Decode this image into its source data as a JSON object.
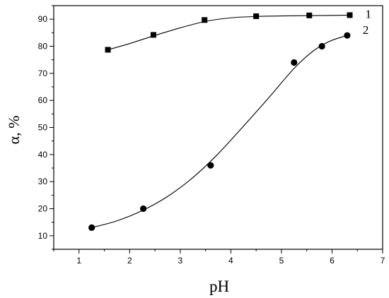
{
  "chart_data": {
    "type": "scatter",
    "xlabel": "pH",
    "ylabel": "α, %",
    "xlim": [
      0.5,
      7
    ],
    "ylim": [
      5,
      95
    ],
    "x_ticks": [
      1,
      2,
      3,
      4,
      5,
      6,
      7
    ],
    "y_ticks": [
      10,
      20,
      30,
      40,
      50,
      60,
      70,
      80,
      90
    ],
    "grid": false,
    "legend": "none",
    "series": [
      {
        "name": "1",
        "marker": "square",
        "color": "#000000",
        "x": [
          1.57,
          2.47,
          3.48,
          4.5,
          5.55,
          6.35
        ],
        "y": [
          78.7,
          84.2,
          89.7,
          91.1,
          91.4,
          91.5
        ],
        "fit_curve": {
          "x": [
            1.57,
            2.0,
            2.5,
            3.0,
            3.5,
            4.0,
            4.5,
            5.0,
            5.5,
            6.0,
            6.35
          ],
          "y": [
            78.7,
            81.0,
            84.0,
            86.8,
            89.2,
            90.5,
            91.0,
            91.2,
            91.3,
            91.4,
            91.5
          ]
        }
      },
      {
        "name": "2",
        "marker": "circle",
        "color": "#000000",
        "x": [
          1.25,
          2.27,
          3.6,
          5.25,
          5.8,
          6.3
        ],
        "y": [
          13.0,
          20.0,
          36.0,
          74.0,
          80.0,
          84.0
        ],
        "fit_curve": {
          "x": [
            1.25,
            1.75,
            2.25,
            2.75,
            3.25,
            3.75,
            4.25,
            4.75,
            5.0,
            5.25,
            5.5,
            5.75,
            6.0,
            6.3
          ],
          "y": [
            13.0,
            15.5,
            19.3,
            24.5,
            31.5,
            40.3,
            50.5,
            61.0,
            66.5,
            71.8,
            76.3,
            79.8,
            82.2,
            84.0
          ]
        }
      }
    ]
  }
}
